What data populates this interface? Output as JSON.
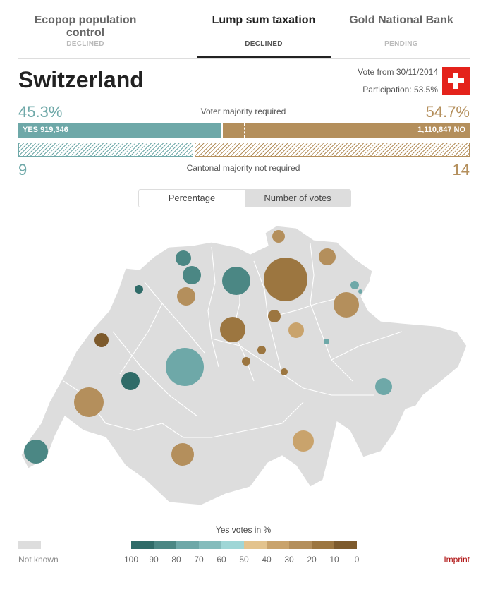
{
  "tabs": [
    {
      "title": "Ecopop population control",
      "status": "DECLINED"
    },
    {
      "title": "Lump sum taxation",
      "status": "DECLINED"
    },
    {
      "title": "Gold National Bank",
      "status": "PENDING"
    }
  ],
  "country": "Switzerland",
  "vote_date": "Vote from 30/11/2014",
  "participation": "Participation: 53.5%",
  "flag_icon": "swiss-flag-icon",
  "results": {
    "yes_pct": "45.3%",
    "no_pct": "54.7%",
    "voter_majority_label": "Voter majority required",
    "yes_votes_label": "YES 919,346",
    "no_votes_label": "1,110,847 NO",
    "yes_share": 0.453,
    "cantons_yes": "9",
    "cantons_no": "14",
    "cantonal_majority_label": "Cantonal majority not required"
  },
  "toggle": {
    "option1": "Percentage",
    "option2": "Number of votes",
    "selected": "Number of votes"
  },
  "colors": {
    "yes": "#6ea8a8",
    "no": "#b48f5c",
    "unknown": "#dddddd"
  },
  "legend": {
    "title": "Yes votes in %",
    "not_known": "Not known",
    "swatches": [
      "#2f6b68",
      "#4b8784",
      "#6ea8a8",
      "#85bcbc",
      "#9fd6d6",
      "#e3c38d",
      "#c9a36c",
      "#b48f5c",
      "#9c7640",
      "#7d5a2c"
    ],
    "labels": [
      "100",
      "90",
      "80",
      "70",
      "60",
      "50",
      "40",
      "30",
      "20",
      "10",
      "0"
    ]
  },
  "imprint": "Imprint"
}
